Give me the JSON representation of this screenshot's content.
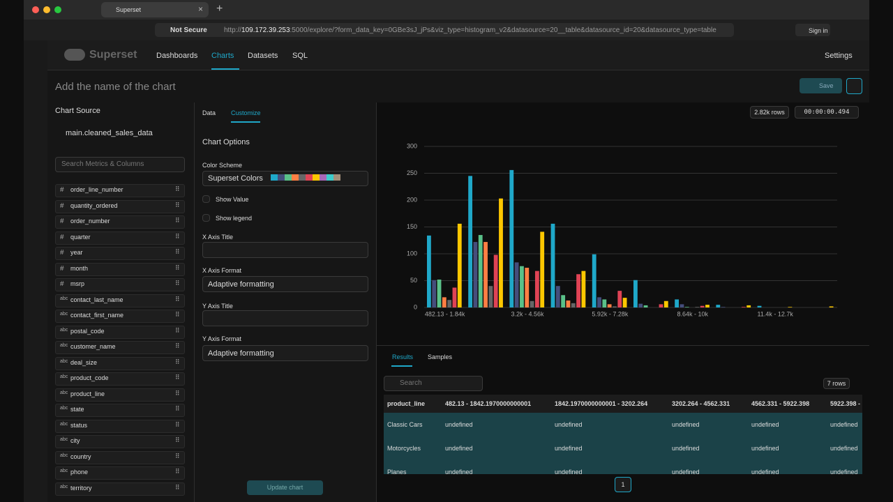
{
  "browser": {
    "tab_title": "Superset",
    "not_secure": "Not Secure",
    "url_scheme": "http://",
    "url_host": "109.172.39.253",
    "url_rest": ":5000/explore/?form_data_key=0GBe3sJ_jPs&viz_type=histogram_v2&datasource=20__table&datasource_id=20&datasource_type=table",
    "sign_in": "Sign in"
  },
  "nav": {
    "brand": "Superset",
    "items": [
      "Dashboards",
      "Charts",
      "Datasets",
      "SQL"
    ],
    "settings": "Settings"
  },
  "header": {
    "chart_name_placeholder": "Add the name of the chart",
    "save": "Save"
  },
  "sidebar": {
    "title": "Chart Source",
    "dataset": "main.cleaned_sales_data",
    "search_placeholder": "Search Metrics & Columns",
    "columns": [
      {
        "icon": "#",
        "name": "order_line_number"
      },
      {
        "icon": "#",
        "name": "quantity_ordered"
      },
      {
        "icon": "#",
        "name": "order_number"
      },
      {
        "icon": "#",
        "name": "quarter"
      },
      {
        "icon": "#",
        "name": "year"
      },
      {
        "icon": "#",
        "name": "month"
      },
      {
        "icon": "#",
        "name": "msrp"
      },
      {
        "icon": "abc",
        "name": "contact_last_name"
      },
      {
        "icon": "abc",
        "name": "contact_first_name"
      },
      {
        "icon": "abc",
        "name": "postal_code"
      },
      {
        "icon": "abc",
        "name": "customer_name"
      },
      {
        "icon": "abc",
        "name": "deal_size"
      },
      {
        "icon": "abc",
        "name": "product_code"
      },
      {
        "icon": "abc",
        "name": "product_line"
      },
      {
        "icon": "abc",
        "name": "state"
      },
      {
        "icon": "abc",
        "name": "status"
      },
      {
        "icon": "abc",
        "name": "city"
      },
      {
        "icon": "abc",
        "name": "country"
      },
      {
        "icon": "abc",
        "name": "phone"
      },
      {
        "icon": "abc",
        "name": "territory"
      }
    ]
  },
  "controls": {
    "tabs": [
      "Data",
      "Customize"
    ],
    "section": "Chart Options",
    "color_scheme_label": "Color Scheme",
    "color_scheme_value": "Superset Colors",
    "show_value": "Show Value",
    "show_legend": "Show legend",
    "x_axis_title": "X Axis Title",
    "x_axis_format": "X Axis Format",
    "x_axis_format_value": "Adaptive formatting",
    "y_axis_title": "Y Axis Title",
    "y_axis_format": "Y Axis Format",
    "y_axis_format_value": "Adaptive formatting",
    "update": "Update chart"
  },
  "stats": {
    "rows": "2.82k rows",
    "duration": "00:00:00.494"
  },
  "chart_data": {
    "type": "bar",
    "categories": [
      "482.13 - 1.84k",
      null,
      "3.2k - 4.56k",
      null,
      "5.92k - 7.28k",
      null,
      "8.64k - 10k",
      null,
      "11.4k - 12.7k",
      null
    ],
    "series": [
      {
        "color": "#1FA8C9",
        "values": [
          134,
          245,
          256,
          156,
          99,
          51,
          15,
          5,
          3,
          0
        ]
      },
      {
        "color": "#454E7C",
        "values": [
          51,
          122,
          84,
          40,
          19,
          7,
          6,
          1,
          0,
          0
        ]
      },
      {
        "color": "#5AC189",
        "values": [
          52,
          135,
          77,
          23,
          15,
          4,
          1,
          0,
          0,
          0
        ]
      },
      {
        "color": "#FF7F44",
        "values": [
          19,
          122,
          74,
          13,
          6,
          0,
          0,
          0,
          0,
          0
        ]
      },
      {
        "color": "#666666",
        "values": [
          14,
          40,
          12,
          8,
          2,
          0,
          1,
          0,
          0,
          0
        ]
      },
      {
        "color": "#E04355",
        "values": [
          37,
          98,
          68,
          62,
          31,
          6,
          3,
          1,
          0,
          0
        ]
      },
      {
        "color": "#FCC700",
        "values": [
          156,
          203,
          141,
          68,
          18,
          12,
          5,
          4,
          1,
          2
        ]
      }
    ],
    "ylim": [
      0,
      300
    ],
    "yticks": [
      0,
      50,
      100,
      150,
      200,
      250,
      300
    ],
    "grid": true
  },
  "results": {
    "tabs": [
      "Results",
      "Samples"
    ],
    "search_placeholder": "Search",
    "row_count": "7 rows",
    "columns": [
      "product_line",
      "482.13 - 1842.1970000000001",
      "1842.1970000000001 - 3202.264",
      "3202.264 - 4562.331",
      "4562.331 - 5922.398",
      "5922.398 -"
    ],
    "rows": [
      [
        "Classic Cars",
        "undefined",
        "undefined",
        "undefined",
        "undefined",
        "undefined"
      ],
      [
        "Motorcycles",
        "undefined",
        "undefined",
        "undefined",
        "undefined",
        "undefined"
      ],
      [
        "Planes",
        "undefined",
        "undefined",
        "undefined",
        "undefined",
        "undefined"
      ]
    ],
    "page": "1"
  }
}
